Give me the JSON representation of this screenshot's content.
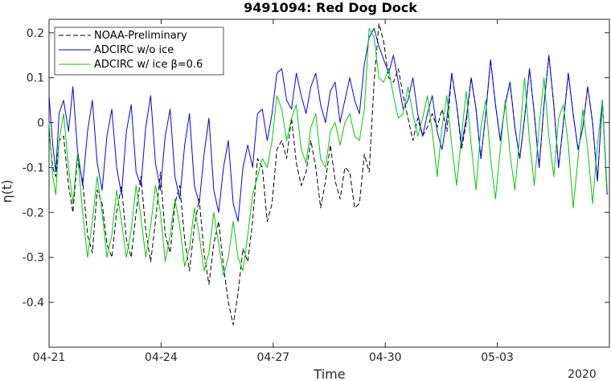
{
  "chart_data": {
    "type": "line",
    "title": "9491094: Red Dog Dock",
    "xlabel": "Time",
    "ylabel": "η(t)",
    "x_year_label": "2020",
    "xlim": [
      0,
      15.0
    ],
    "ylim": [
      -0.5,
      0.23
    ],
    "x_ticks": [
      0,
      3,
      6,
      9,
      12
    ],
    "x_tick_labels": [
      "04-21",
      "04-24",
      "04-27",
      "04-30",
      "05-03"
    ],
    "y_ticks": [
      0.2,
      0.1,
      0,
      -0.1,
      -0.2,
      -0.3,
      -0.4
    ],
    "y_tick_labels": [
      "0.2",
      "0.1",
      "0",
      "-0.1",
      "-0.2",
      "-0.3",
      "-0.4"
    ],
    "x_units": "days since 04-21 00:00 (2020)",
    "legend_position": "top-left",
    "grid": false,
    "series": [
      {
        "name": "NOAA-Preliminary",
        "color": "#000000",
        "dash": "dashed",
        "x": [
          0.0,
          0.1,
          0.18,
          0.27,
          0.39,
          0.52,
          0.64,
          0.76,
          0.9,
          1.03,
          1.16,
          1.29,
          1.42,
          1.55,
          1.68,
          1.81,
          1.94,
          2.07,
          2.2,
          2.33,
          2.46,
          2.59,
          2.72,
          2.85,
          2.98,
          3.11,
          3.24,
          3.37,
          3.5,
          3.63,
          3.76,
          3.89,
          4.02,
          4.15,
          4.28,
          4.41,
          4.54,
          4.67,
          4.8,
          4.93,
          5.06,
          5.19,
          5.32,
          5.45,
          5.58,
          5.71,
          5.84,
          5.97,
          6.1,
          6.23,
          6.36,
          6.49,
          6.62,
          6.75,
          6.88,
          7.01,
          7.14,
          7.27,
          7.4,
          7.53,
          7.66,
          7.79,
          7.92,
          8.05,
          8.18,
          8.31,
          8.44,
          8.57,
          8.7,
          8.83,
          8.96,
          9.09,
          9.22,
          9.35,
          9.48,
          9.61,
          9.74,
          9.87,
          10.0,
          10.13,
          10.26,
          10.39,
          10.52,
          10.65,
          10.78,
          10.91,
          11.04,
          11.17,
          11.3,
          11.43,
          11.56,
          11.69,
          11.82,
          11.95,
          12.08,
          12.21,
          12.34,
          12.47,
          12.6,
          12.73,
          12.86,
          12.99,
          13.12,
          13.25,
          13.38,
          13.51,
          13.64,
          13.77,
          13.9,
          14.03,
          14.16,
          14.29,
          14.42,
          14.55,
          14.68,
          14.81,
          14.94
        ],
        "y": [
          -0.02,
          -0.1,
          -0.12,
          -0.04,
          -0.03,
          -0.14,
          -0.2,
          -0.08,
          -0.13,
          -0.25,
          -0.29,
          -0.15,
          -0.18,
          -0.27,
          -0.3,
          -0.2,
          -0.14,
          -0.26,
          -0.3,
          -0.2,
          -0.12,
          -0.24,
          -0.31,
          -0.22,
          -0.11,
          -0.25,
          -0.29,
          -0.18,
          -0.14,
          -0.26,
          -0.33,
          -0.23,
          -0.17,
          -0.29,
          -0.36,
          -0.27,
          -0.22,
          -0.32,
          -0.4,
          -0.45,
          -0.38,
          -0.28,
          -0.31,
          -0.22,
          -0.08,
          -0.1,
          -0.22,
          -0.18,
          -0.06,
          -0.04,
          -0.08,
          0.01,
          -0.09,
          -0.14,
          -0.11,
          -0.04,
          -0.1,
          -0.19,
          -0.13,
          -0.05,
          -0.13,
          -0.17,
          -0.1,
          -0.11,
          -0.19,
          -0.18,
          -0.07,
          -0.11,
          0.09,
          0.22,
          0.18,
          0.1,
          0.09,
          0.12,
          0.06,
          0.01,
          -0.04,
          0.01,
          -0.03,
          -0.01,
          0.02,
          -0.01,
          0.03,
          -0.02,
          0.11,
          0.04,
          -0.06,
          0.0,
          0.1,
          0.03,
          -0.08,
          0.02,
          0.14,
          0.04,
          -0.04,
          0.04,
          0.09,
          -0.01,
          -0.08,
          0.01,
          0.12,
          0.02,
          -0.1,
          0.04,
          0.15,
          0.04,
          -0.1,
          0.0,
          0.11,
          0.02,
          -0.06,
          -0.01,
          0.08,
          0.0,
          -0.13,
          0.05,
          -0.16
        ]
      },
      {
        "name": "ADCIRC w/o ice",
        "color": "#0000ff",
        "dash": "solid",
        "x": [
          0.0,
          0.1,
          0.18,
          0.27,
          0.39,
          0.52,
          0.64,
          0.76,
          0.9,
          1.03,
          1.16,
          1.29,
          1.42,
          1.55,
          1.68,
          1.81,
          1.94,
          2.07,
          2.2,
          2.33,
          2.46,
          2.59,
          2.72,
          2.85,
          2.98,
          3.11,
          3.24,
          3.37,
          3.5,
          3.63,
          3.76,
          3.89,
          4.02,
          4.15,
          4.28,
          4.41,
          4.54,
          4.67,
          4.8,
          4.93,
          5.06,
          5.19,
          5.32,
          5.45,
          5.58,
          5.71,
          5.84,
          5.97,
          6.1,
          6.23,
          6.36,
          6.49,
          6.62,
          6.75,
          6.88,
          7.01,
          7.14,
          7.27,
          7.4,
          7.53,
          7.66,
          7.79,
          7.92,
          8.05,
          8.18,
          8.31,
          8.44,
          8.57,
          8.7,
          8.83,
          8.96,
          9.09,
          9.22,
          9.35,
          9.48,
          9.61,
          9.74,
          9.87,
          10.0,
          10.13,
          10.26,
          10.39,
          10.52,
          10.65,
          10.78,
          10.91,
          11.04,
          11.17,
          11.3,
          11.43,
          11.56,
          11.69,
          11.82,
          11.95,
          12.08,
          12.21,
          12.34,
          12.47,
          12.6,
          12.73,
          12.86,
          12.99,
          13.12,
          13.25,
          13.38,
          13.51,
          13.64,
          13.77,
          13.9,
          14.03,
          14.16,
          14.29,
          14.42,
          14.55,
          14.68,
          14.81,
          14.94
        ],
        "y": [
          0.06,
          -0.05,
          -0.11,
          0.02,
          0.05,
          -0.02,
          0.08,
          -0.06,
          -0.14,
          -0.02,
          0.05,
          -0.09,
          -0.15,
          -0.03,
          0.03,
          -0.1,
          -0.16,
          -0.02,
          0.04,
          -0.11,
          -0.14,
          -0.01,
          0.06,
          -0.09,
          -0.15,
          -0.03,
          0.03,
          -0.12,
          -0.17,
          -0.05,
          0.02,
          -0.14,
          -0.18,
          -0.07,
          0.01,
          -0.15,
          -0.2,
          -0.1,
          -0.04,
          -0.18,
          -0.22,
          -0.1,
          -0.05,
          -0.1,
          0.02,
          0.03,
          -0.04,
          0.02,
          0.11,
          0.12,
          0.05,
          0.03,
          0.11,
          0.06,
          0.02,
          0.08,
          0.11,
          0.04,
          0.0,
          0.07,
          0.09,
          0.0,
          0.05,
          0.1,
          0.05,
          0.02,
          0.13,
          0.19,
          0.21,
          0.17,
          0.14,
          0.11,
          0.15,
          0.09,
          0.03,
          0.05,
          0.1,
          0.02,
          -0.03,
          0.02,
          0.06,
          -0.02,
          -0.06,
          0.01,
          0.11,
          0.04,
          -0.05,
          0.01,
          0.1,
          0.03,
          -0.08,
          0.02,
          0.14,
          0.04,
          -0.04,
          0.04,
          0.09,
          -0.01,
          -0.08,
          0.01,
          0.12,
          0.02,
          -0.1,
          0.04,
          0.15,
          0.04,
          -0.1,
          0.0,
          0.11,
          0.02,
          -0.06,
          -0.01,
          0.08,
          0.0,
          -0.13,
          0.05,
          -0.16
        ]
      },
      {
        "name": "ADCIRC w/ ice β=0.6",
        "color": "#00cc00",
        "dash": "solid",
        "x": [
          0.0,
          0.1,
          0.18,
          0.27,
          0.39,
          0.52,
          0.64,
          0.76,
          0.9,
          1.03,
          1.16,
          1.29,
          1.42,
          1.55,
          1.68,
          1.81,
          1.94,
          2.07,
          2.2,
          2.33,
          2.46,
          2.59,
          2.72,
          2.85,
          2.98,
          3.11,
          3.24,
          3.37,
          3.5,
          3.63,
          3.76,
          3.89,
          4.02,
          4.15,
          4.28,
          4.41,
          4.54,
          4.67,
          4.8,
          4.93,
          5.06,
          5.19,
          5.32,
          5.45,
          5.58,
          5.71,
          5.84,
          5.97,
          6.1,
          6.23,
          6.36,
          6.49,
          6.62,
          6.75,
          6.88,
          7.01,
          7.14,
          7.27,
          7.4,
          7.53,
          7.66,
          7.79,
          7.92,
          8.05,
          8.18,
          8.31,
          8.44,
          8.57,
          8.7,
          8.83,
          8.96,
          9.09,
          9.22,
          9.35,
          9.48,
          9.61,
          9.74,
          9.87,
          10.0,
          10.13,
          10.26,
          10.39,
          10.52,
          10.65,
          10.78,
          10.91,
          11.04,
          11.17,
          11.3,
          11.43,
          11.56,
          11.69,
          11.82,
          11.95,
          12.08,
          12.21,
          12.34,
          12.47,
          12.6,
          12.73,
          12.86,
          12.99,
          13.12,
          13.25,
          13.38,
          13.51,
          13.64,
          13.77,
          13.9,
          14.03,
          14.16,
          14.29,
          14.42,
          14.55,
          14.68,
          14.81,
          14.94
        ],
        "y": [
          0.0,
          -0.12,
          -0.16,
          -0.04,
          0.02,
          -0.1,
          -0.18,
          -0.07,
          -0.2,
          -0.3,
          -0.22,
          -0.12,
          -0.2,
          -0.3,
          -0.25,
          -0.15,
          -0.22,
          -0.3,
          -0.24,
          -0.14,
          -0.21,
          -0.3,
          -0.23,
          -0.14,
          -0.2,
          -0.31,
          -0.25,
          -0.17,
          -0.23,
          -0.32,
          -0.28,
          -0.19,
          -0.25,
          -0.33,
          -0.29,
          -0.2,
          -0.27,
          -0.34,
          -0.3,
          -0.22,
          -0.3,
          -0.33,
          -0.25,
          -0.16,
          -0.12,
          -0.08,
          -0.1,
          -0.04,
          0.06,
          0.03,
          -0.04,
          0.01,
          0.04,
          -0.06,
          -0.09,
          -0.01,
          0.02,
          -0.08,
          -0.1,
          -0.02,
          0.0,
          -0.05,
          0.0,
          0.02,
          -0.03,
          -0.04,
          0.03,
          0.21,
          0.19,
          0.1,
          0.09,
          0.12,
          0.06,
          0.01,
          0.02,
          0.08,
          0.02,
          -0.03,
          0.01,
          0.06,
          -0.02,
          -0.12,
          -0.01,
          0.06,
          -0.05,
          -0.14,
          -0.03,
          0.07,
          -0.05,
          -0.15,
          -0.01,
          0.05,
          -0.08,
          -0.17,
          -0.06,
          0.05,
          -0.07,
          -0.15,
          -0.03,
          0.1,
          -0.04,
          -0.14,
          -0.01,
          0.1,
          -0.03,
          -0.12,
          0.01,
          0.04,
          -0.05,
          -0.19,
          -0.08,
          0.03,
          -0.06,
          -0.18,
          -0.05,
          0.05,
          -0.15
        ]
      }
    ]
  }
}
